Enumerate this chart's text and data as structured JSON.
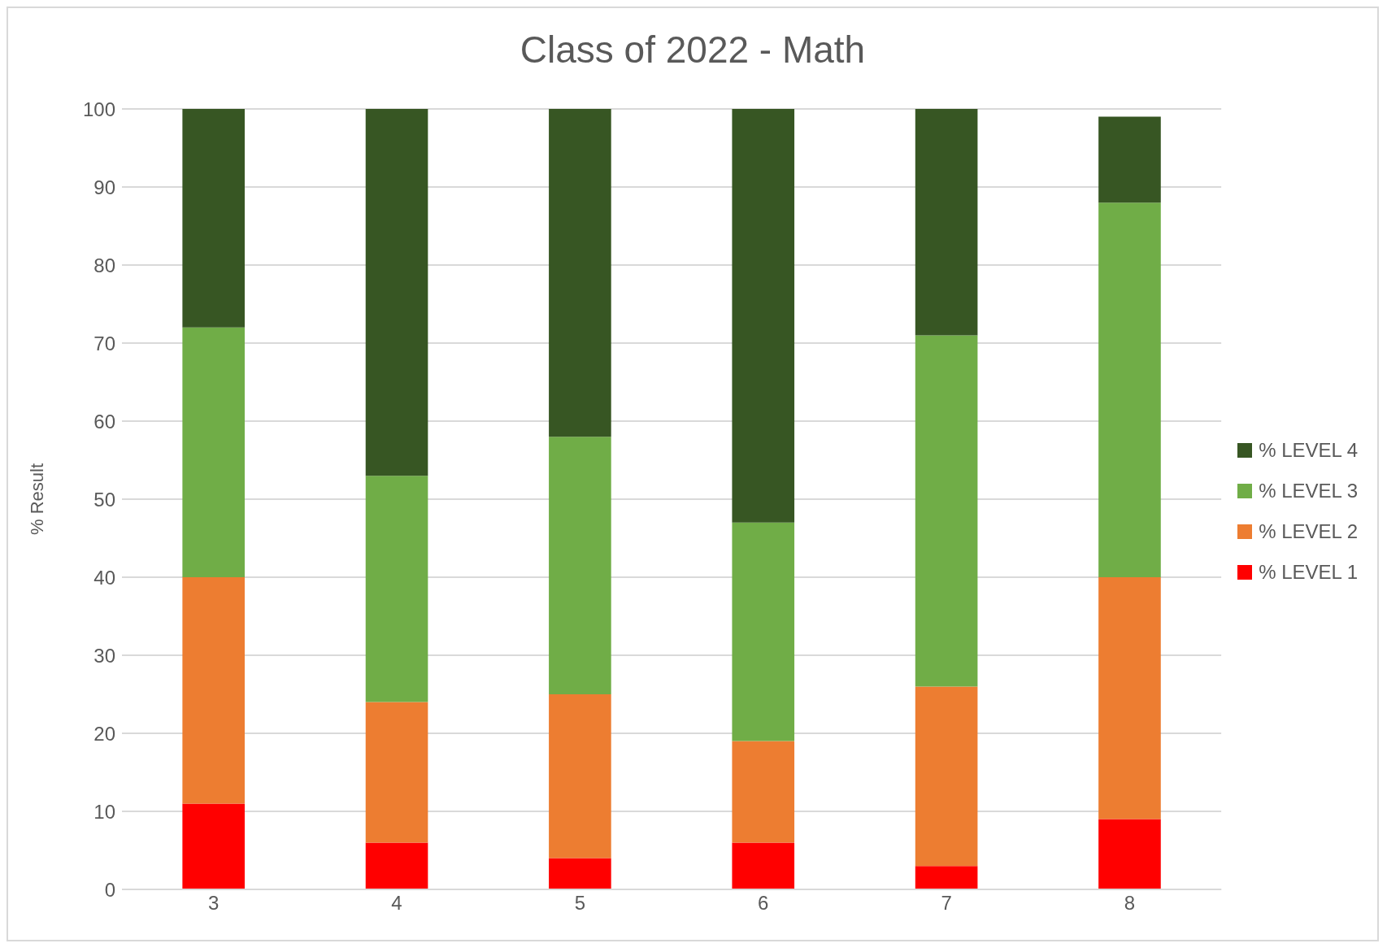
{
  "chart_data": {
    "type": "bar",
    "title": "Class of 2022 - Math",
    "ylabel": "% Result",
    "categories": [
      "3",
      "4",
      "5",
      "6",
      "7",
      "8"
    ],
    "stacked": true,
    "series": [
      {
        "name": "% LEVEL 1",
        "color": "#ff0000",
        "values": [
          11,
          6,
          4,
          6,
          3,
          9
        ]
      },
      {
        "name": "% LEVEL 2",
        "color": "#ed7d31",
        "values": [
          29,
          18,
          21,
          13,
          23,
          31
        ]
      },
      {
        "name": "% LEVEL 3",
        "color": "#70ad47",
        "values": [
          32,
          29,
          33,
          28,
          45,
          48
        ]
      },
      {
        "name": "% LEVEL 4",
        "color": "#375623",
        "values": [
          28,
          47,
          42,
          53,
          29,
          11
        ]
      }
    ],
    "ylim": [
      0,
      100
    ],
    "yticks": [
      0,
      10,
      20,
      30,
      40,
      50,
      60,
      70,
      80,
      90,
      100
    ],
    "grid": "y",
    "legend": "right"
  }
}
